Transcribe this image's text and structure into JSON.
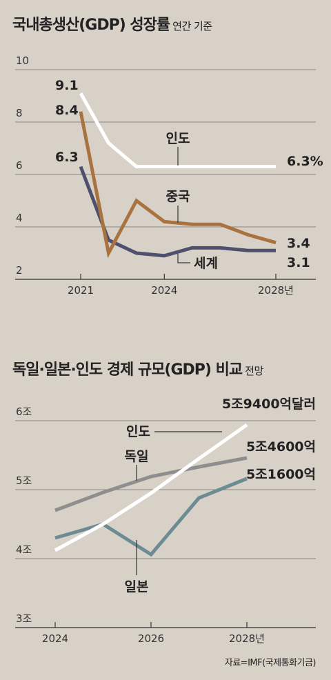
{
  "chart1": {
    "title": "국내총생산(GDP) 성장률",
    "subtitle": "연간 기준",
    "chart_data": {
      "type": "line",
      "title": "국내총생산(GDP) 성장률",
      "subtitle": "연간 기준",
      "x": [
        2021,
        2022,
        2023,
        2024,
        2025,
        2026,
        2027,
        2028
      ],
      "x_tick_labels": [
        "2021",
        "2024",
        "2028년"
      ],
      "x_ticks": [
        2021,
        2024,
        2028
      ],
      "y_ticks": [
        2,
        4,
        6,
        8,
        10
      ],
      "y_tick_labels": [
        "2",
        "4",
        "6",
        "8",
        "10"
      ],
      "ylim": [
        2,
        10
      ],
      "grid": true,
      "series": [
        {
          "name": "인도",
          "color": "#ffffff",
          "values": [
            9.1,
            7.2,
            6.3,
            6.3,
            6.3,
            6.3,
            6.3,
            6.3
          ],
          "start_label": "9.1",
          "end_label": "6.3%"
        },
        {
          "name": "중국",
          "color": "#a8733f",
          "values": [
            8.4,
            3.0,
            5.0,
            4.2,
            4.1,
            4.1,
            3.7,
            3.4
          ],
          "start_label": "8.4",
          "end_label": "3.4"
        },
        {
          "name": "세계",
          "color": "#4f4f6e",
          "values": [
            6.3,
            3.5,
            3.0,
            2.9,
            3.2,
            3.2,
            3.1,
            3.1
          ],
          "start_label": "6.3",
          "end_label": "3.1"
        }
      ]
    }
  },
  "chart2": {
    "title": "독일·일본·인도 경제 규모(GDP) 비교",
    "subtitle": "전망",
    "chart_data": {
      "type": "line",
      "title": "독일·일본·인도 경제 규모(GDP) 비교",
      "subtitle": "전망",
      "x": [
        2024,
        2025,
        2026,
        2027,
        2028
      ],
      "x_tick_labels": [
        "2024",
        "2026",
        "2028년"
      ],
      "x_ticks": [
        2024,
        2026,
        2028
      ],
      "y_ticks": [
        3,
        4,
        5,
        6
      ],
      "y_tick_labels": [
        "3조",
        "4조",
        "5조",
        "6조"
      ],
      "ylim": [
        3,
        6
      ],
      "unit": "조 달러",
      "grid": true,
      "series": [
        {
          "name": "인도",
          "color": "#ffffff",
          "values": [
            4.12,
            4.5,
            4.95,
            5.45,
            5.94
          ],
          "end_label": "5조9400억달러"
        },
        {
          "name": "독일",
          "color": "#8e8e8e",
          "values": [
            4.7,
            4.96,
            5.19,
            5.33,
            5.46
          ],
          "end_label": "5조4600억"
        },
        {
          "name": "일본",
          "color": "#6d8b93",
          "values": [
            4.3,
            4.5,
            4.06,
            4.88,
            5.16
          ],
          "end_label": "5조1600억"
        }
      ]
    }
  },
  "source": "자료=IMF(국제통화기금)"
}
